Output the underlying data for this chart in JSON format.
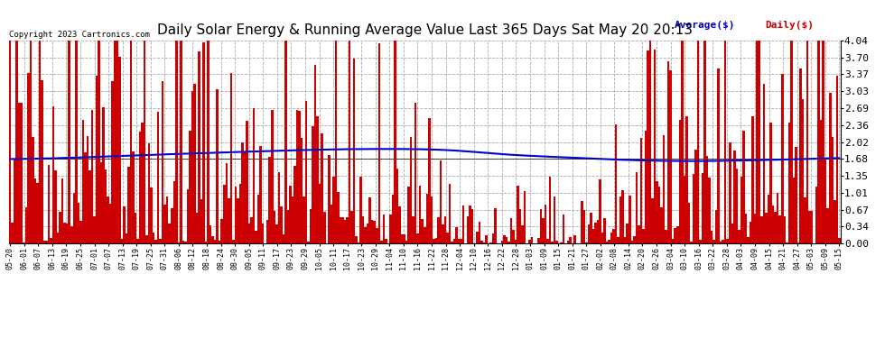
{
  "title": "Daily Solar Energy & Running Average Value Last 365 Days Sat May 20 20:13",
  "copyright": "Copyright 2023 Cartronics.com",
  "legend_avg": "Average($)",
  "legend_daily": "Daily($)",
  "bar_color": "#cc0000",
  "avg_line_color": "#0000cc",
  "background_color": "#ffffff",
  "plot_bg_color": "#ffffff",
  "grid_color": "#aaaaaa",
  "title_fontsize": 11,
  "ylim": [
    0.0,
    4.04
  ],
  "yticks": [
    0.0,
    0.34,
    0.67,
    1.01,
    1.35,
    1.68,
    2.02,
    2.36,
    2.69,
    3.03,
    3.37,
    3.7,
    4.04
  ],
  "n_bars": 365,
  "x_tick_labels": [
    "05-20",
    "06-01",
    "06-07",
    "06-13",
    "06-19",
    "06-25",
    "07-01",
    "07-07",
    "07-13",
    "07-19",
    "07-25",
    "07-31",
    "08-06",
    "08-12",
    "08-18",
    "08-24",
    "08-30",
    "09-05",
    "09-11",
    "09-17",
    "09-23",
    "09-29",
    "10-05",
    "10-11",
    "10-17",
    "10-23",
    "10-29",
    "11-04",
    "11-10",
    "11-16",
    "11-22",
    "11-28",
    "12-04",
    "12-10",
    "12-16",
    "12-22",
    "12-28",
    "01-03",
    "01-09",
    "01-15",
    "01-21",
    "01-27",
    "02-02",
    "02-08",
    "02-14",
    "02-20",
    "02-26",
    "03-04",
    "03-10",
    "03-16",
    "03-22",
    "03-28",
    "04-03",
    "04-09",
    "04-15",
    "04-21",
    "04-27",
    "05-03",
    "05-09",
    "05-15"
  ],
  "avg_curve_points": [
    [
      0,
      1.68
    ],
    [
      30,
      1.71
    ],
    [
      60,
      1.76
    ],
    [
      100,
      1.82
    ],
    [
      140,
      1.87
    ],
    [
      170,
      1.88
    ],
    [
      195,
      1.85
    ],
    [
      215,
      1.78
    ],
    [
      240,
      1.72
    ],
    [
      260,
      1.68
    ],
    [
      280,
      1.65
    ],
    [
      300,
      1.64
    ],
    [
      320,
      1.65
    ],
    [
      340,
      1.67
    ],
    [
      364,
      1.7
    ]
  ]
}
